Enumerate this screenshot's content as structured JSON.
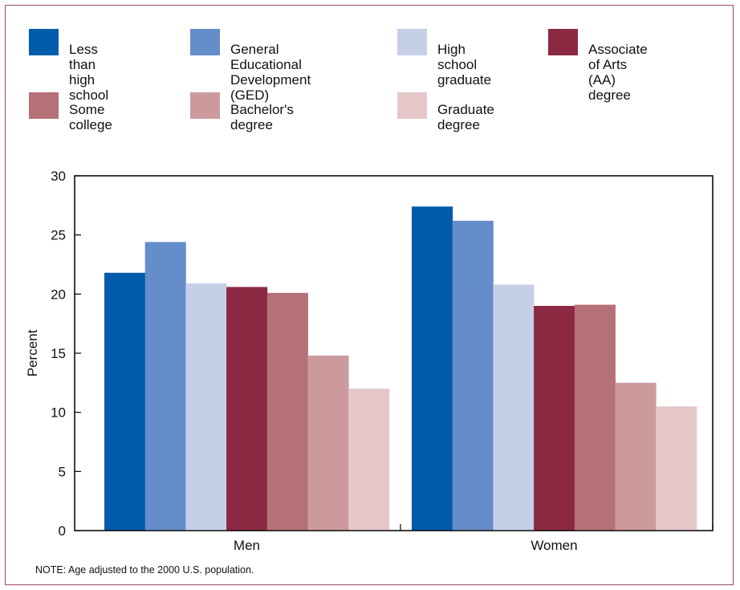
{
  "chart_data": {
    "type": "bar",
    "categories": [
      "Men",
      "Women"
    ],
    "series": [
      {
        "name": "Less than\nhigh school",
        "color": "#005bab",
        "values": [
          21.8,
          27.4
        ]
      },
      {
        "name": "General Educational\nDevelopment (GED)",
        "color": "#658dc9",
        "values": [
          24.4,
          26.2
        ]
      },
      {
        "name": "High school\ngraduate",
        "color": "#c5cfe8",
        "values": [
          20.9,
          20.8
        ]
      },
      {
        "name": "Associate of Arts\n(AA) degree",
        "color": "#8b2942",
        "values": [
          20.6,
          19.0
        ]
      },
      {
        "name": "Some college",
        "color": "#b67078",
        "values": [
          20.1,
          19.1
        ]
      },
      {
        "name": "Bachelor's degree",
        "color": "#cc9a9d",
        "values": [
          14.8,
          12.5
        ]
      },
      {
        "name": "Graduate degree",
        "color": "#e5c7c9",
        "values": [
          12.0,
          10.5
        ]
      }
    ],
    "ylabel": "Percent",
    "xlabel": "",
    "ylim": [
      0,
      30
    ],
    "yticks": [
      "0",
      "5",
      "10",
      "15",
      "20",
      "25",
      "30"
    ],
    "grid": false,
    "legend_position": "top"
  },
  "note": "NOTE: Age adjusted to the 2000 U.S. population."
}
